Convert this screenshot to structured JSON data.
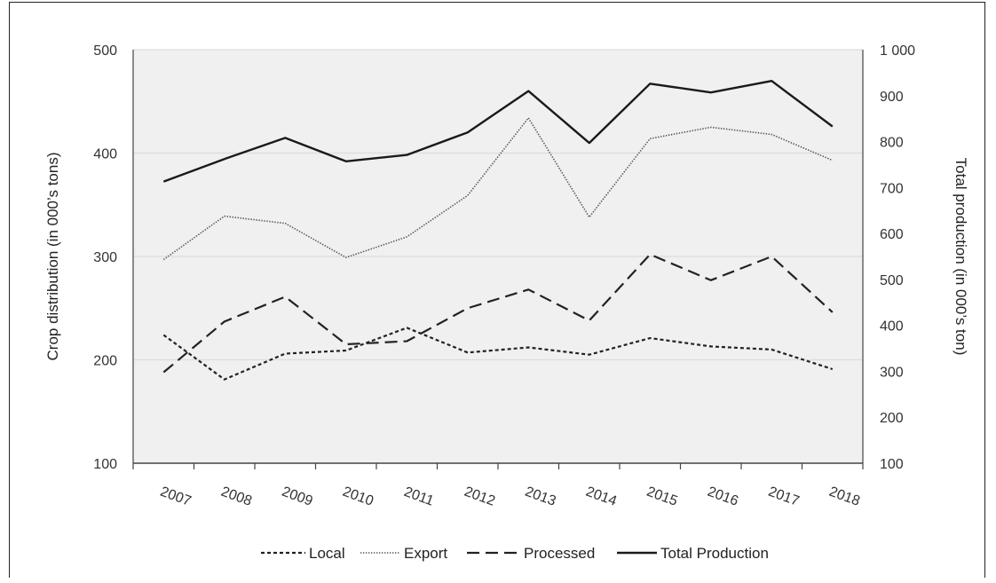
{
  "chart_data": {
    "type": "line",
    "title": "",
    "categories": [
      "2007",
      "2008",
      "2009",
      "2010",
      "2011",
      "2012",
      "2013",
      "2014",
      "2015",
      "2016",
      "2017",
      "2018"
    ],
    "left_axis": {
      "label": "Crop distribution (in 000’s tons)",
      "ylim": [
        100,
        500
      ],
      "ticks": [
        "100",
        "200",
        "300",
        "400",
        "500"
      ],
      "tick_values": [
        100,
        200,
        300,
        400,
        500
      ]
    },
    "right_axis": {
      "label": "Total production (in 000’s ton)",
      "ylim": [
        100,
        1000
      ],
      "ticks": [
        "100",
        "200",
        "300",
        "400",
        "500",
        "600",
        "700",
        "800",
        "900",
        "1 000"
      ],
      "tick_values": [
        100,
        200,
        300,
        400,
        500,
        600,
        700,
        800,
        900,
        1000
      ]
    },
    "grid": true,
    "legend_position": "bottom",
    "series": [
      {
        "name": "Local",
        "axis": "left",
        "style": "dashed-short",
        "color": "#222222",
        "values": [
          224,
          181,
          206,
          209,
          231,
          207,
          212,
          205,
          221,
          213,
          210,
          191
        ]
      },
      {
        "name": "Export",
        "axis": "left",
        "style": "dotted",
        "color": "#555555",
        "values": [
          297,
          339,
          332,
          299,
          319,
          359,
          434,
          338,
          414,
          425,
          418,
          393
        ]
      },
      {
        "name": "Processed",
        "axis": "left",
        "style": "dashed-long",
        "color": "#222222",
        "values": [
          188,
          237,
          261,
          215,
          218,
          250,
          268,
          238,
          302,
          277,
          300,
          246
        ]
      },
      {
        "name": "Total Production",
        "axis": "right",
        "style": "solid",
        "color": "#1a1a1a",
        "values": [
          713,
          762,
          808,
          757,
          771,
          820,
          910,
          797,
          926,
          907,
          932,
          833
        ]
      }
    ],
    "plot_background": "#f0f0f0"
  }
}
